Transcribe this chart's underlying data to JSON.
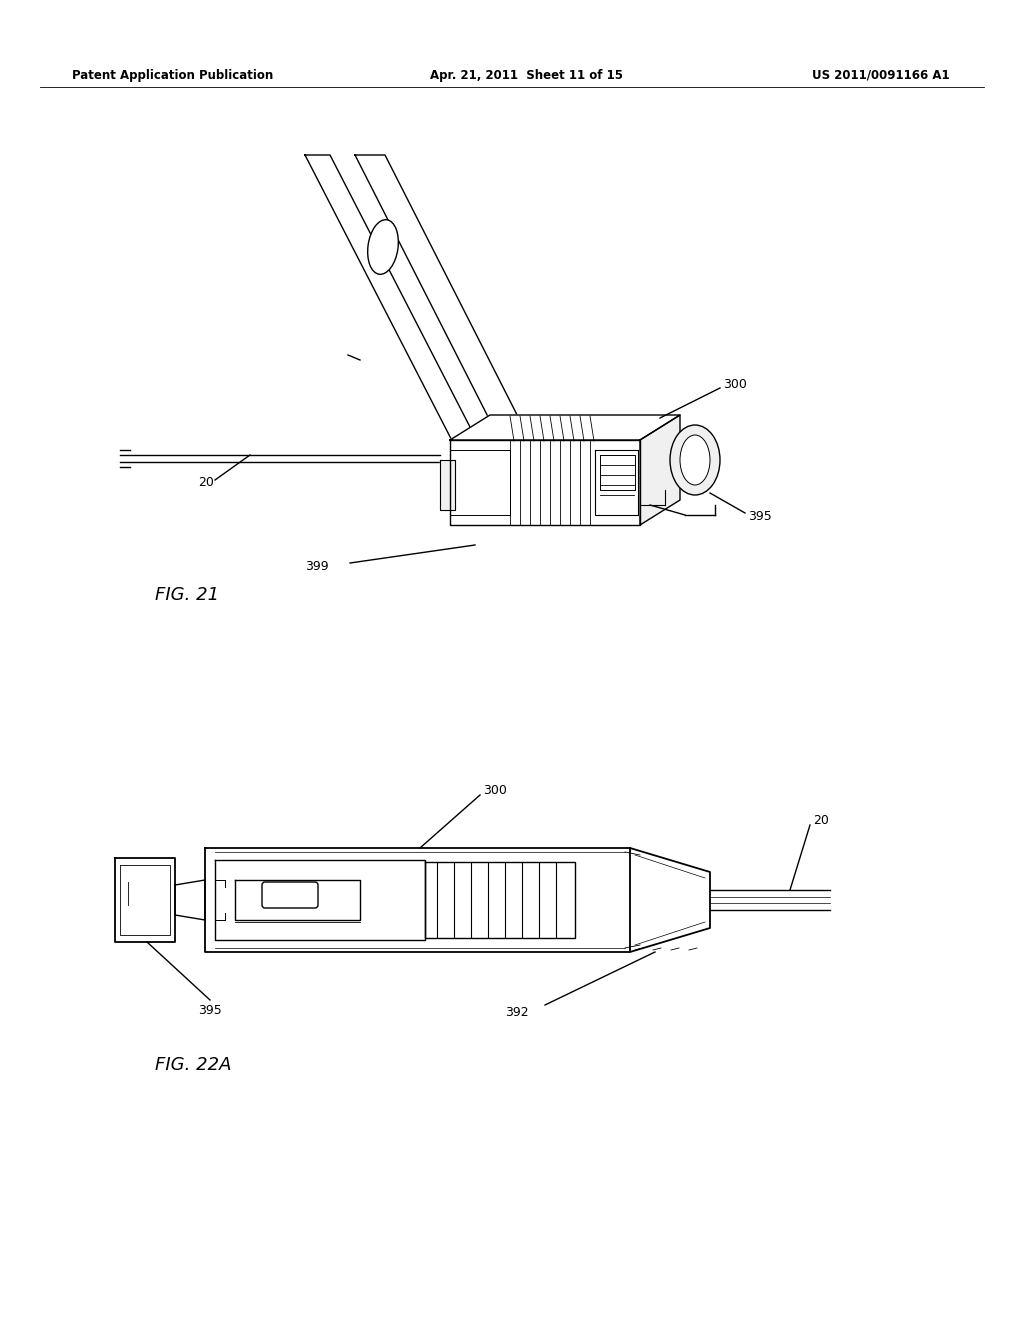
{
  "bg_color": "#ffffff",
  "text_color": "#000000",
  "header_left": "Patent Application Publication",
  "header_mid": "Apr. 21, 2011  Sheet 11 of 15",
  "header_right": "US 2011/0091166 A1",
  "fig21_label": "FIG. 21",
  "fig22a_label": "FIG. 22A",
  "line_color": "#000000",
  "fill_white": "#ffffff",
  "fill_light": "#f0f0f0"
}
